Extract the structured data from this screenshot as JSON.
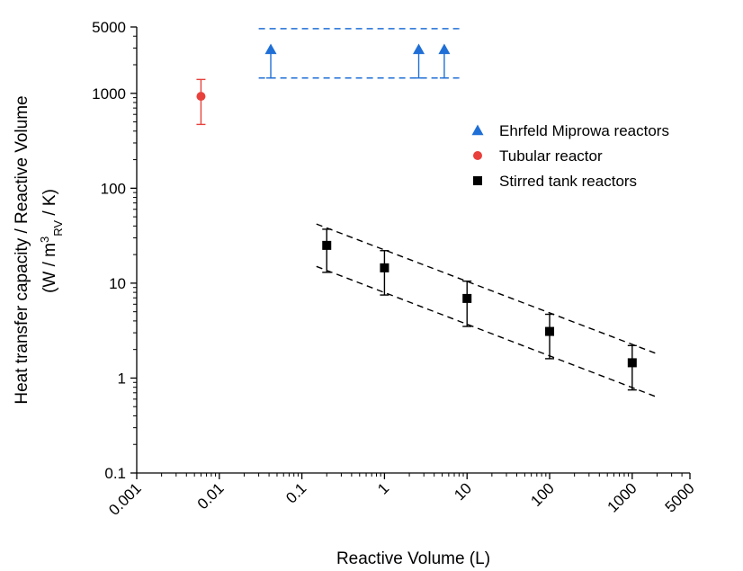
{
  "chart_data": {
    "type": "scatter",
    "title": "",
    "xlabel": "Reactive Volume (L)",
    "ylabel_line1": "Heat transfer capacity / Reactive Volume",
    "ylabel_line2_prefix": "(W / m",
    "ylabel_line2_sup": "3",
    "ylabel_line2_sub": "RV",
    "ylabel_line2_suffix": " / K)",
    "xscale": "log",
    "yscale": "log",
    "xlim": [
      0.001,
      5000
    ],
    "ylim": [
      0.1,
      5000
    ],
    "xticks": [
      {
        "value": 0.001,
        "label": "0.001"
      },
      {
        "value": 0.01,
        "label": "0.01"
      },
      {
        "value": 0.1,
        "label": "0.1"
      },
      {
        "value": 1,
        "label": "1"
      },
      {
        "value": 10,
        "label": "10"
      },
      {
        "value": 100,
        "label": "100"
      },
      {
        "value": 1000,
        "label": "1000"
      },
      {
        "value": 5000,
        "label": "5000"
      }
    ],
    "yticks": [
      {
        "value": 0.1,
        "label": "0.1"
      },
      {
        "value": 1,
        "label": "1"
      },
      {
        "value": 10,
        "label": "10"
      },
      {
        "value": 100,
        "label": "100"
      },
      {
        "value": 1000,
        "label": "1000"
      },
      {
        "value": 5000,
        "label": "5000"
      }
    ],
    "grid": false,
    "legend_position": "right",
    "series": [
      {
        "name": "Ehrfeld Miprowa reactors",
        "marker": "triangle",
        "color": "#1f6fd6",
        "points": [
          {
            "x": 0.042,
            "y": 2900,
            "ylow": 1450
          },
          {
            "x": 2.6,
            "y": 2900,
            "ylow": 1450
          },
          {
            "x": 5.3,
            "y": 2900,
            "ylow": 1450
          }
        ]
      },
      {
        "name": "Tubular reactor",
        "marker": "circle",
        "color": "#e8413c",
        "points": [
          {
            "x": 0.006,
            "y": 930,
            "ylow": 470,
            "yhigh": 1400
          }
        ]
      },
      {
        "name": "Stirred tank reactors",
        "marker": "square",
        "color": "#000000",
        "points": [
          {
            "x": 0.2,
            "y": 25,
            "ylow": 13,
            "yhigh": 37
          },
          {
            "x": 1,
            "y": 14.5,
            "ylow": 7.5,
            "yhigh": 22
          },
          {
            "x": 10,
            "y": 6.9,
            "ylow": 3.5,
            "yhigh": 10.5
          },
          {
            "x": 100,
            "y": 3.1,
            "ylow": 1.6,
            "yhigh": 4.7
          },
          {
            "x": 1000,
            "y": 1.45,
            "ylow": 0.75,
            "yhigh": 2.2
          }
        ]
      }
    ],
    "guide_lines": [
      {
        "color": "#1f6fd6",
        "style": "dashed",
        "from": [
          0.03,
          4800
        ],
        "to": [
          9,
          4800
        ]
      },
      {
        "color": "#1f6fd6",
        "style": "dashed",
        "from": [
          0.03,
          1450
        ],
        "to": [
          9,
          1450
        ]
      },
      {
        "color": "#000000",
        "style": "dashed",
        "from": [
          0.15,
          42
        ],
        "to": [
          2000,
          1.8
        ]
      },
      {
        "color": "#000000",
        "style": "dashed",
        "from": [
          0.15,
          15
        ],
        "to": [
          2000,
          0.63
        ]
      }
    ]
  }
}
